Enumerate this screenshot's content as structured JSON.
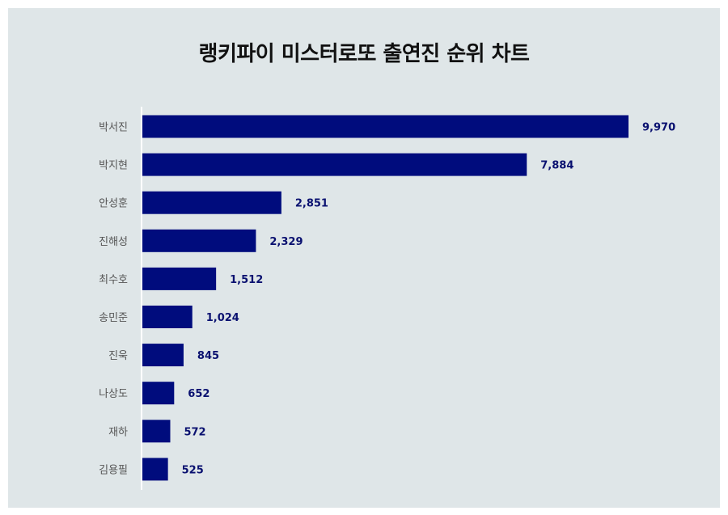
{
  "title": "랭키파이 미스터로또 출연진 순위 차트",
  "colors": {
    "background": "#dfe6e8",
    "bar": "#000c7d",
    "value_text": "#0a1170",
    "axis": "#ffffff"
  },
  "chart_data": {
    "type": "bar",
    "orientation": "horizontal",
    "title": "랭키파이 미스터로또 출연진 순위 차트",
    "categories": [
      "박서진",
      "박지현",
      "안성훈",
      "진해성",
      "최수호",
      "송민준",
      "진욱",
      "나상도",
      "재하",
      "김용필"
    ],
    "values": [
      9970,
      7884,
      2851,
      2329,
      1512,
      1024,
      845,
      652,
      572,
      525
    ],
    "value_labels": [
      "9,970",
      "7,884",
      "2,851",
      "2,329",
      "1,512",
      "1,024",
      "845",
      "652",
      "572",
      "525"
    ],
    "xlim": [
      0,
      9970
    ],
    "grid": false,
    "legend": "none"
  }
}
